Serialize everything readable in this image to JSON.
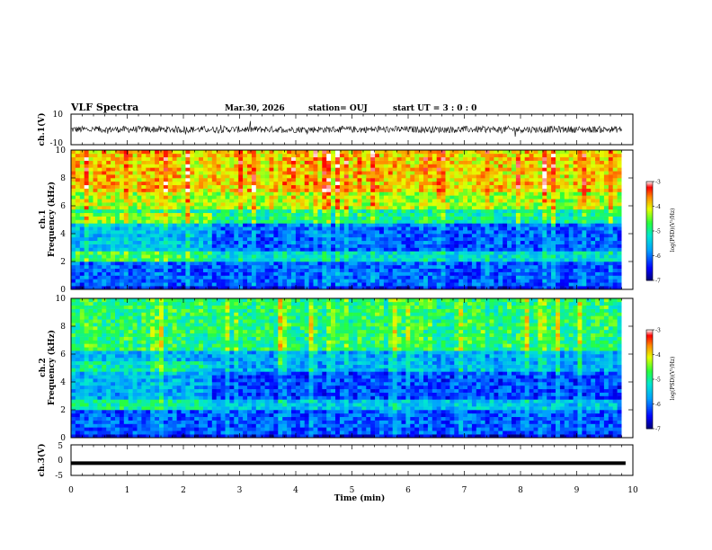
{
  "header": {
    "title": "VLF Spectra",
    "date": "Mar.30, 2026",
    "station": "station= OUJ",
    "start": "start  UT =   3 : 0  : 0"
  },
  "chart_data": [
    {
      "type": "line",
      "panel": "ch1-waveform",
      "ylabel": "ch.1(V)",
      "ylim": [
        -10,
        10
      ],
      "yticks": [
        "10",
        "-10"
      ],
      "xlim": [
        0,
        10
      ],
      "baseline": 0,
      "noise_amplitude": 2.2
    },
    {
      "type": "heatmap",
      "panel": "ch1-spectrogram",
      "ylabel": "Frequency (kHz)",
      "channel_label": "ch.1",
      "ylim": [
        0,
        10
      ],
      "yticks": [
        "0",
        "2",
        "4",
        "6",
        "8",
        "10"
      ],
      "xlim": [
        0,
        9.8
      ],
      "colorbar": {
        "label": "log(PSD)(V²/Hz)",
        "range": [
          -7,
          -3
        ],
        "ticks": [
          "-3",
          "-4",
          "-5",
          "-6",
          "-7"
        ]
      },
      "bands": [
        {
          "f": [
            0,
            0.3
          ],
          "level": -6.6
        },
        {
          "f": [
            0.3,
            2.0
          ],
          "level": -6.2
        },
        {
          "f": [
            2.0,
            2.8
          ],
          "level": -5.4
        },
        {
          "f": [
            2.8,
            4.8
          ],
          "level": -6.2
        },
        {
          "f": [
            4.8,
            5.8
          ],
          "level": -5.2
        },
        {
          "f": [
            5.8,
            7.0
          ],
          "level": -4.5
        },
        {
          "f": [
            7.0,
            10.0
          ],
          "level": -4.1
        }
      ],
      "transition_time_min": 2.5
    },
    {
      "type": "heatmap",
      "panel": "ch2-spectrogram",
      "ylabel": "Frequency (kHz)",
      "channel_label": "ch.2",
      "ylim": [
        0,
        10
      ],
      "yticks": [
        "0",
        "2",
        "4",
        "6",
        "8",
        "10"
      ],
      "xlim": [
        0,
        9.8
      ],
      "colorbar": {
        "label": "log(PSD)(V²/Hz)",
        "range": [
          -7,
          -3
        ],
        "ticks": [
          "-3",
          "-4",
          "-5",
          "-6",
          "-7"
        ]
      },
      "bands": [
        {
          "f": [
            0,
            0.3
          ],
          "level": -6.7
        },
        {
          "f": [
            0.3,
            2.0
          ],
          "level": -6.2
        },
        {
          "f": [
            2.0,
            2.8
          ],
          "level": -5.6
        },
        {
          "f": [
            2.8,
            4.8
          ],
          "level": -6.3
        },
        {
          "f": [
            4.8,
            6.2
          ],
          "level": -5.8
        },
        {
          "f": [
            6.2,
            10.0
          ],
          "level": -5.0
        }
      ],
      "transition_time_min": 2.5
    },
    {
      "type": "line",
      "panel": "ch3-waveform",
      "ylabel": "ch.3(V)",
      "ylim": [
        -5,
        5
      ],
      "yticks": [
        "5",
        "0",
        "-5"
      ],
      "xlim": [
        0,
        10
      ],
      "baseline": 0
    }
  ],
  "xaxis": {
    "label": "Time  (min)",
    "ticks": [
      "0",
      "1",
      "2",
      "3",
      "4",
      "5",
      "6",
      "7",
      "8",
      "9",
      "10"
    ]
  },
  "colors": {
    "scale": [
      "#00008b",
      "#0000ff",
      "#00bfff",
      "#00ff80",
      "#ffff00",
      "#ff8000",
      "#ff0000",
      "#ffffff"
    ]
  }
}
